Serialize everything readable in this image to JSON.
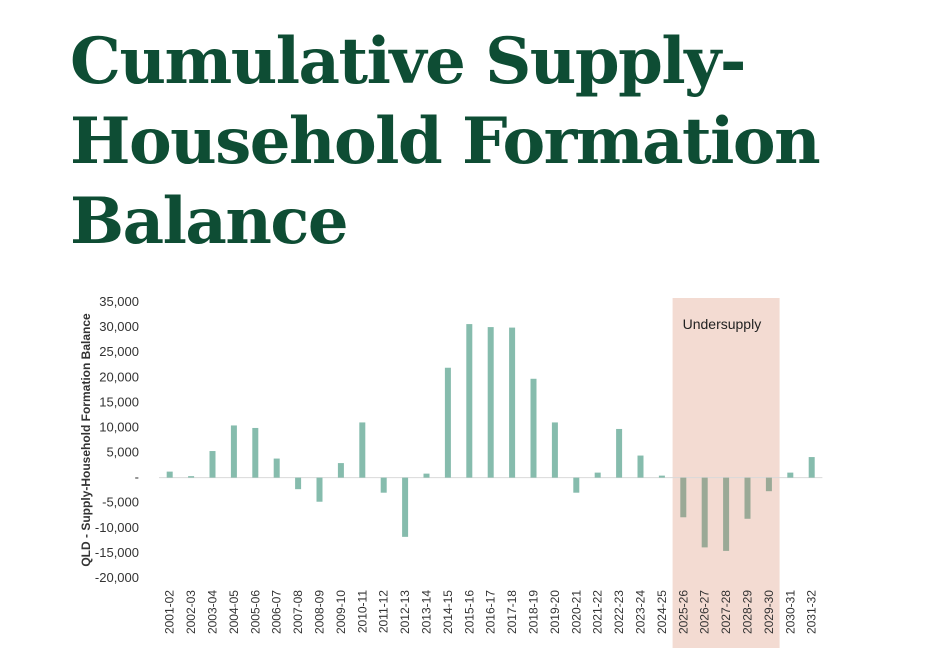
{
  "title_lines": [
    "Cumulative Supply-",
    "Household Formation",
    "Balance"
  ],
  "colors": {
    "title": "#0e4d34",
    "bar": "#86bcad",
    "bar_shaded": "#9aa996",
    "highlight": "#f3dbd2",
    "axis_zero": "#d9d9d9"
  },
  "chart_data": {
    "type": "bar",
    "ylabel": "QLD - Supply-Household Formation Balance",
    "ylim": [
      -20000,
      35000
    ],
    "yticks": [
      35000,
      30000,
      25000,
      20000,
      15000,
      10000,
      5000,
      0,
      -5000,
      -10000,
      -15000,
      -20000
    ],
    "ytick_labels": [
      "35,000",
      "30,000",
      "25,000",
      "20,000",
      "15,000",
      "10,000",
      "5,000",
      "-",
      "-5,000",
      "-10,000",
      "-15,000",
      "-20,000"
    ],
    "categories": [
      "2001-02",
      "2002-03",
      "2003-04",
      "2004-05",
      "2005-06",
      "2006-07",
      "2007-08",
      "2008-09",
      "2009-10",
      "2010-11",
      "2011-12",
      "2012-13",
      "2013-14",
      "2014-15",
      "2015-16",
      "2016-17",
      "2017-18",
      "2018-19",
      "2019-20",
      "2020-21",
      "2021-22",
      "2022-23",
      "2023-24",
      "2024-25",
      "2025-26",
      "2026-27",
      "2027-28",
      "2028-29",
      "2029-30",
      "2030-31",
      "2031-32"
    ],
    "values": [
      1200,
      300,
      5300,
      10400,
      9900,
      3800,
      -2300,
      -4800,
      2900,
      11000,
      -3000,
      -11800,
      800,
      21900,
      30600,
      30000,
      29900,
      19700,
      11000,
      -3000,
      1000,
      9700,
      4400,
      400,
      -7900,
      -13900,
      -14600,
      -8200,
      -2700,
      1000,
      4100
    ],
    "highlight": {
      "label": "Undersupply",
      "from": "2025-26",
      "to": "2029-30"
    },
    "grid": false,
    "legend": "none"
  }
}
